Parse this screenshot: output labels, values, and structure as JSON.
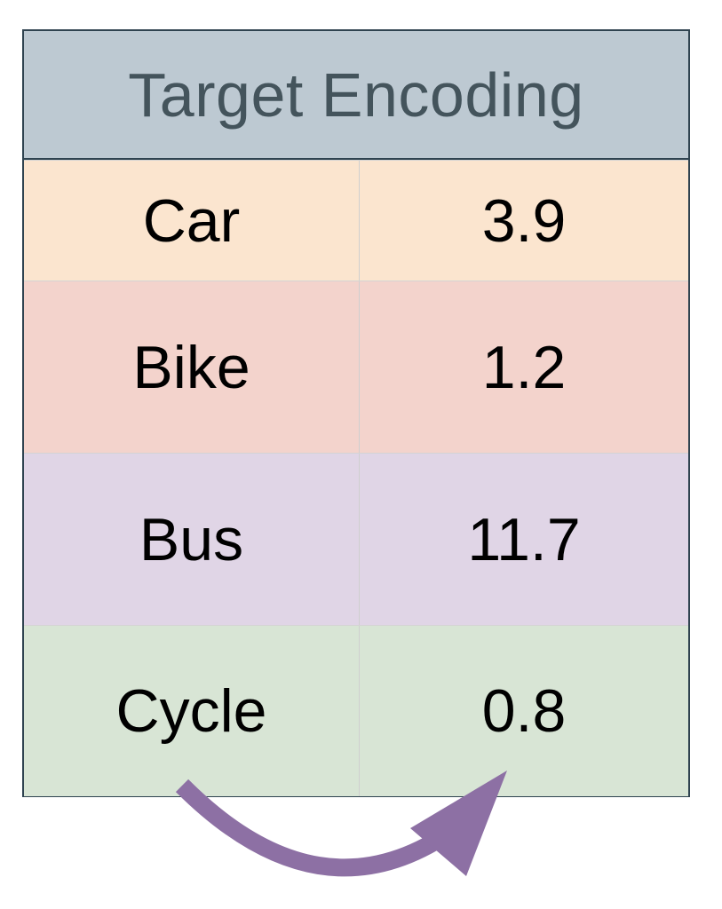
{
  "title": "Target Encoding",
  "rows": [
    {
      "category": "Car",
      "value": "3.9",
      "color": "#fbe5cf"
    },
    {
      "category": "Bike",
      "value": "1.2",
      "color": "#f3d3cc"
    },
    {
      "category": "Bus",
      "value": "11.7",
      "color": "#e0d5e6"
    },
    {
      "category": "Cycle",
      "value": "0.8",
      "color": "#d8e5d5"
    }
  ],
  "colors": {
    "header_bg": "#bdc9d2",
    "border": "#2f4350",
    "arrow": "#8d70a4"
  },
  "icons": {
    "arrow": "curved-arrow-icon"
  }
}
